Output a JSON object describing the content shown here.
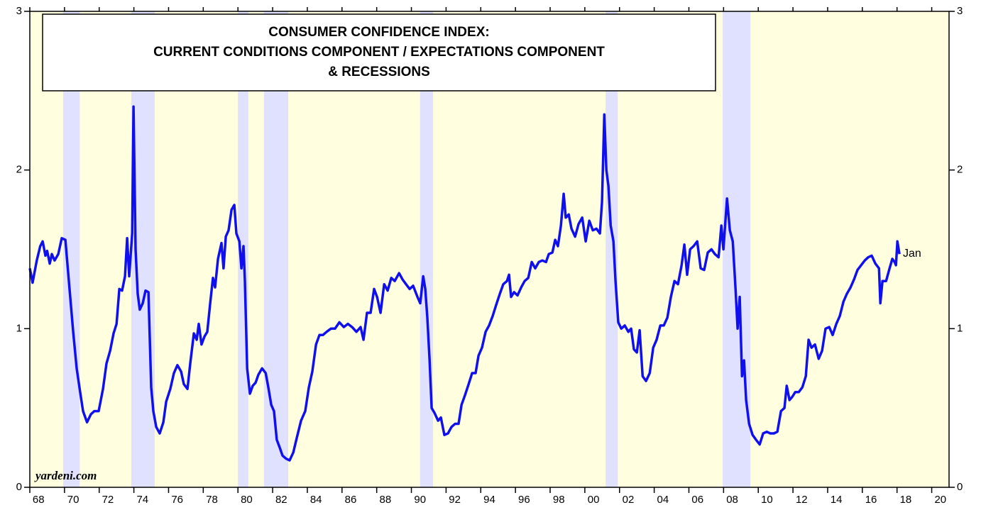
{
  "chart_data": {
    "type": "line",
    "title": [
      "CONSUMER CONFIDENCE INDEX:",
      "CURRENT CONDITIONS COMPONENT / EXPECTATIONS COMPONENT",
      "& RECESSIONS"
    ],
    "annotations": [
      "Jan",
      "yardeni.com"
    ],
    "background": "#ffffe0",
    "recession_color": "#e0e0ff",
    "recessions": [
      [
        1969.92,
        1970.88
      ],
      [
        1973.85,
        1975.2
      ],
      [
        1980.0,
        1980.6
      ],
      [
        1981.5,
        1982.9
      ],
      [
        1990.5,
        1991.25
      ],
      [
        2001.2,
        2001.9
      ],
      [
        2007.95,
        2009.55
      ]
    ],
    "xlim": [
      1968,
      2021
    ],
    "ylim": [
      0,
      3
    ],
    "yticks": [
      0,
      1,
      2,
      3
    ],
    "xticks": [
      {
        "value": 1968,
        "label": "68"
      },
      {
        "value": 1970,
        "label": "70"
      },
      {
        "value": 1972,
        "label": "72"
      },
      {
        "value": 1974,
        "label": "74"
      },
      {
        "value": 1976,
        "label": "76"
      },
      {
        "value": 1978,
        "label": "78"
      },
      {
        "value": 1980,
        "label": "80"
      },
      {
        "value": 1982,
        "label": "82"
      },
      {
        "value": 1984,
        "label": "84"
      },
      {
        "value": 1986,
        "label": "86"
      },
      {
        "value": 1988,
        "label": "88"
      },
      {
        "value": 1990,
        "label": "90"
      },
      {
        "value": 1992,
        "label": "92"
      },
      {
        "value": 1994,
        "label": "94"
      },
      {
        "value": 1996,
        "label": "96"
      },
      {
        "value": 1998,
        "label": "98"
      },
      {
        "value": 2000,
        "label": "00"
      },
      {
        "value": 2002,
        "label": "02"
      },
      {
        "value": 2004,
        "label": "04"
      },
      {
        "value": 2006,
        "label": "06"
      },
      {
        "value": 2008,
        "label": "08"
      },
      {
        "value": 2010,
        "label": "10"
      },
      {
        "value": 2012,
        "label": "12"
      },
      {
        "value": 2014,
        "label": "14"
      },
      {
        "value": 2016,
        "label": "16"
      },
      {
        "value": 2018,
        "label": "18"
      },
      {
        "value": 2020,
        "label": "20"
      }
    ],
    "x": [
      1968.0,
      1968.16,
      1968.4,
      1968.6,
      1968.74,
      1968.9,
      1969.0,
      1969.15,
      1969.27,
      1969.43,
      1969.64,
      1969.84,
      1970.05,
      1970.25,
      1970.5,
      1970.7,
      1970.9,
      1971.07,
      1971.3,
      1971.52,
      1971.72,
      1971.97,
      1972.22,
      1972.42,
      1972.63,
      1972.83,
      1973.0,
      1973.16,
      1973.32,
      1973.49,
      1973.61,
      1973.73,
      1973.9,
      1973.98,
      1974.1,
      1974.22,
      1974.34,
      1974.51,
      1974.67,
      1974.84,
      1975.0,
      1975.12,
      1975.29,
      1975.49,
      1975.7,
      1975.86,
      1976.1,
      1976.31,
      1976.51,
      1976.72,
      1976.88,
      1977.09,
      1977.25,
      1977.46,
      1977.62,
      1977.74,
      1977.9,
      1978.07,
      1978.23,
      1978.4,
      1978.56,
      1978.68,
      1978.85,
      1979.05,
      1979.17,
      1979.3,
      1979.46,
      1979.63,
      1979.79,
      1979.91,
      1980.08,
      1980.2,
      1980.32,
      1980.4,
      1980.53,
      1980.69,
      1980.85,
      1981.02,
      1981.18,
      1981.39,
      1981.6,
      1981.75,
      1981.92,
      1982.08,
      1982.24,
      1982.41,
      1982.57,
      1982.78,
      1982.98,
      1983.19,
      1983.39,
      1983.64,
      1983.88,
      1984.09,
      1984.29,
      1984.5,
      1984.7,
      1984.9,
      1985.11,
      1985.36,
      1985.6,
      1985.85,
      1986.1,
      1986.34,
      1986.58,
      1986.83,
      1987.07,
      1987.24,
      1987.44,
      1987.65,
      1987.85,
      1988.02,
      1988.22,
      1988.43,
      1988.63,
      1988.84,
      1989.04,
      1989.29,
      1989.49,
      1989.69,
      1989.9,
      1990.1,
      1990.35,
      1990.51,
      1990.68,
      1990.8,
      1990.92,
      1991.05,
      1991.17,
      1991.33,
      1991.54,
      1991.7,
      1991.9,
      1992.11,
      1992.31,
      1992.52,
      1992.72,
      1992.89,
      1993.09,
      1993.3,
      1993.5,
      1993.7,
      1993.87,
      1994.07,
      1994.28,
      1994.48,
      1994.69,
      1994.89,
      1995.1,
      1995.3,
      1995.51,
      1995.63,
      1995.75,
      1995.92,
      1996.12,
      1996.33,
      1996.53,
      1996.74,
      1996.94,
      1997.14,
      1997.35,
      1997.55,
      1997.76,
      1997.92,
      1998.13,
      1998.29,
      1998.45,
      1998.62,
      1998.78,
      1998.9,
      1999.07,
      1999.23,
      1999.44,
      1999.64,
      1999.85,
      2000.05,
      2000.26,
      2000.46,
      2000.67,
      2000.87,
      2000.99,
      2001.12,
      2001.24,
      2001.36,
      2001.49,
      2001.65,
      2001.77,
      2001.93,
      2002.1,
      2002.3,
      2002.51,
      2002.67,
      2002.83,
      2003.0,
      2003.16,
      2003.33,
      2003.53,
      2003.74,
      2003.94,
      2004.14,
      2004.35,
      2004.55,
      2004.76,
      2004.96,
      2005.17,
      2005.37,
      2005.58,
      2005.74,
      2005.9,
      2006.07,
      2006.27,
      2006.48,
      2006.68,
      2006.88,
      2007.09,
      2007.3,
      2007.5,
      2007.71,
      2007.87,
      2007.99,
      2008.2,
      2008.36,
      2008.53,
      2008.69,
      2008.81,
      2008.93,
      2009.06,
      2009.18,
      2009.3,
      2009.47,
      2009.67,
      2009.87,
      2010.08,
      2010.28,
      2010.49,
      2010.69,
      2010.9,
      2011.1,
      2011.31,
      2011.51,
      2011.64,
      2011.8,
      2011.96,
      2012.13,
      2012.33,
      2012.54,
      2012.74,
      2012.9,
      2013.07,
      2013.27,
      2013.48,
      2013.68,
      2013.88,
      2014.09,
      2014.29,
      2014.5,
      2014.7,
      2014.91,
      2015.11,
      2015.32,
      2015.52,
      2015.72,
      2015.93,
      2016.14,
      2016.34,
      2016.54,
      2016.75,
      2016.96,
      2017.04,
      2017.16,
      2017.37,
      2017.57,
      2017.73,
      2017.86,
      2017.94,
      2018.02,
      2018.14
    ],
    "series": [
      {
        "name": "Current / Expectations",
        "color": "#1010ee",
        "values": [
          1.38,
          1.29,
          1.43,
          1.52,
          1.55,
          1.46,
          1.49,
          1.41,
          1.47,
          1.43,
          1.47,
          1.57,
          1.56,
          1.3,
          0.98,
          0.75,
          0.6,
          0.48,
          0.41,
          0.46,
          0.48,
          0.48,
          0.62,
          0.78,
          0.86,
          0.97,
          1.03,
          1.25,
          1.24,
          1.33,
          1.57,
          1.33,
          1.6,
          2.4,
          1.5,
          1.22,
          1.12,
          1.16,
          1.24,
          1.23,
          0.63,
          0.48,
          0.38,
          0.34,
          0.41,
          0.54,
          0.62,
          0.72,
          0.77,
          0.73,
          0.65,
          0.62,
          0.78,
          0.97,
          0.93,
          1.03,
          0.9,
          0.95,
          0.98,
          1.16,
          1.32,
          1.26,
          1.44,
          1.54,
          1.38,
          1.58,
          1.62,
          1.75,
          1.78,
          1.6,
          1.55,
          1.38,
          1.52,
          1.3,
          0.75,
          0.59,
          0.64,
          0.66,
          0.71,
          0.75,
          0.72,
          0.63,
          0.52,
          0.48,
          0.3,
          0.25,
          0.2,
          0.18,
          0.17,
          0.22,
          0.31,
          0.42,
          0.48,
          0.63,
          0.73,
          0.9,
          0.96,
          0.96,
          0.98,
          1.0,
          1.0,
          1.04,
          1.01,
          1.03,
          1.01,
          0.98,
          1.01,
          0.93,
          1.1,
          1.1,
          1.25,
          1.2,
          1.1,
          1.28,
          1.24,
          1.32,
          1.3,
          1.35,
          1.31,
          1.28,
          1.25,
          1.27,
          1.2,
          1.16,
          1.33,
          1.25,
          1.07,
          0.8,
          0.5,
          0.47,
          0.42,
          0.44,
          0.33,
          0.34,
          0.38,
          0.4,
          0.4,
          0.52,
          0.58,
          0.65,
          0.72,
          0.72,
          0.83,
          0.88,
          0.98,
          1.02,
          1.08,
          1.15,
          1.22,
          1.28,
          1.3,
          1.34,
          1.2,
          1.23,
          1.21,
          1.26,
          1.3,
          1.32,
          1.42,
          1.38,
          1.42,
          1.43,
          1.42,
          1.47,
          1.48,
          1.56,
          1.52,
          1.65,
          1.85,
          1.7,
          1.72,
          1.63,
          1.58,
          1.66,
          1.7,
          1.55,
          1.68,
          1.62,
          1.63,
          1.6,
          1.8,
          2.35,
          2.0,
          1.9,
          1.65,
          1.55,
          1.3,
          1.04,
          1.0,
          1.02,
          0.98,
          1.0,
          0.87,
          0.85,
          0.99,
          0.7,
          0.67,
          0.72,
          0.88,
          0.93,
          1.02,
          1.02,
          1.07,
          1.2,
          1.3,
          1.28,
          1.4,
          1.53,
          1.34,
          1.5,
          1.52,
          1.55,
          1.38,
          1.37,
          1.48,
          1.5,
          1.47,
          1.45,
          1.65,
          1.5,
          1.82,
          1.62,
          1.55,
          1.25,
          1.0,
          1.2,
          0.7,
          0.8,
          0.55,
          0.4,
          0.33,
          0.3,
          0.27,
          0.34,
          0.35,
          0.34,
          0.34,
          0.35,
          0.48,
          0.5,
          0.64,
          0.55,
          0.57,
          0.6,
          0.6,
          0.63,
          0.7,
          0.93,
          0.88,
          0.9,
          0.81,
          0.86,
          1.0,
          1.01,
          0.96,
          1.03,
          1.08,
          1.17,
          1.22,
          1.26,
          1.31,
          1.37,
          1.4,
          1.43,
          1.45,
          1.46,
          1.41,
          1.38,
          1.16,
          1.3,
          1.3,
          1.38,
          1.44,
          1.42,
          1.4,
          1.55,
          1.47
        ]
      }
    ]
  }
}
